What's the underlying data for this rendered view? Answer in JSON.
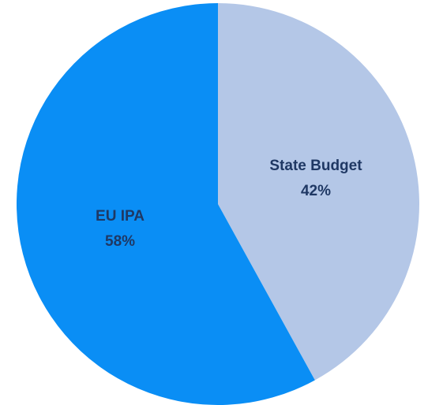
{
  "chart_data": {
    "type": "pie",
    "categories": [
      "State Budget",
      "EU IPA"
    ],
    "values": [
      42,
      58
    ],
    "value_labels": [
      "42%",
      "58%"
    ],
    "colors": [
      "#b4c7e7",
      "#0a8ef5"
    ]
  }
}
